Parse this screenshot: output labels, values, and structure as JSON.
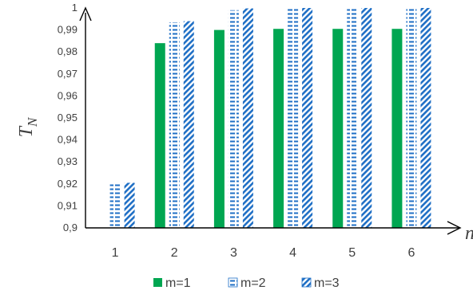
{
  "chart_data": {
    "type": "bar",
    "categories": [
      "1",
      "2",
      "3",
      "4",
      "5",
      "6"
    ],
    "xlabel": "n",
    "ylabel_main": "T",
    "ylabel_sub": "N",
    "ylim": [
      0.9,
      1.0
    ],
    "yticks": [
      "0,9",
      "0,91",
      "0,92",
      "0,93",
      "0,94",
      "0,95",
      "0,96",
      "0,97",
      "0,98",
      "0,99",
      "1"
    ],
    "grid": false,
    "legend_position": "bottom",
    "series": [
      {
        "name": "m=1",
        "values": [
          null,
          0.984,
          0.99,
          0.9905,
          0.9905,
          0.9905
        ],
        "color": "#00a651",
        "pattern": "solid"
      },
      {
        "name": "m=2",
        "values": [
          0.9205,
          0.9935,
          0.999,
          0.9995,
          0.9995,
          0.9995
        ],
        "color": "#1f6fc5",
        "pattern": "horizontal-dashes"
      },
      {
        "name": "m=3",
        "values": [
          0.9205,
          0.994,
          0.9998,
          1.0,
          1.0,
          1.0
        ],
        "color": "#1f6fc5",
        "pattern": "diagonal-stripes"
      }
    ]
  }
}
